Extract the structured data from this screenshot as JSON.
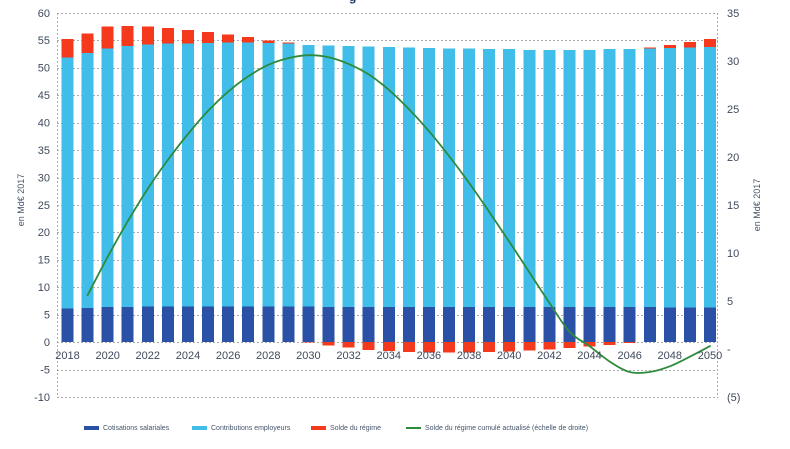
{
  "title_fragment": "g",
  "chart_data": {
    "type": "bar",
    "subtype": "stacked-bars-with-line-overlay",
    "grid": true,
    "legend_position": "bottom",
    "x": [
      2018,
      2019,
      2020,
      2021,
      2022,
      2023,
      2024,
      2025,
      2026,
      2027,
      2028,
      2029,
      2030,
      2031,
      2032,
      2033,
      2034,
      2035,
      2036,
      2037,
      2038,
      2039,
      2040,
      2041,
      2042,
      2043,
      2044,
      2045,
      2046,
      2047,
      2048,
      2049,
      2050
    ],
    "x_tick_labels": [
      "2018",
      "2020",
      "2022",
      "2024",
      "2026",
      "2028",
      "2030",
      "2032",
      "2034",
      "2036",
      "2038",
      "2040",
      "2042",
      "2044",
      "2046",
      "2048",
      "2050"
    ],
    "left_axis": {
      "title": "en Md€ 2017",
      "min": -10,
      "max": 60,
      "step": 5,
      "tick_labels": [
        "60",
        "55",
        "50",
        "45",
        "40",
        "35",
        "30",
        "25",
        "20",
        "15",
        "10",
        "5",
        "0",
        "-5",
        "-10"
      ],
      "tick_values": [
        60,
        55,
        50,
        45,
        40,
        35,
        30,
        25,
        20,
        15,
        10,
        5,
        0,
        -5,
        -10
      ]
    },
    "right_axis": {
      "title": "en Md€ 2017",
      "min": -5,
      "max": 35,
      "tick_labels": [
        "35",
        "30",
        "25",
        "20",
        "15",
        "10",
        "5",
        "-",
        "(5)"
      ],
      "tick_values": [
        35,
        30,
        25,
        20,
        15,
        10,
        5,
        0,
        -5
      ]
    },
    "series": [
      {
        "name": "Cotisations salariales",
        "kind": "bar",
        "axis": "left",
        "color": "#2A51A5",
        "values": [
          6.1,
          6.2,
          6.4,
          6.4,
          6.5,
          6.5,
          6.5,
          6.5,
          6.5,
          6.5,
          6.5,
          6.5,
          6.5,
          6.4,
          6.4,
          6.4,
          6.4,
          6.4,
          6.4,
          6.4,
          6.4,
          6.4,
          6.4,
          6.4,
          6.4,
          6.4,
          6.4,
          6.4,
          6.4,
          6.4,
          6.3,
          6.3,
          6.3
        ]
      },
      {
        "name": "Contributions employeurs",
        "kind": "bar",
        "axis": "left",
        "color": "#41BDE9",
        "values": [
          45.8,
          46.5,
          47.1,
          47.6,
          47.8,
          47.9,
          47.9,
          48.0,
          48.1,
          48.1,
          48.0,
          47.9,
          47.7,
          47.7,
          47.6,
          47.5,
          47.4,
          47.3,
          47.2,
          47.1,
          47.1,
          47.0,
          47.0,
          46.9,
          46.9,
          46.9,
          46.9,
          47.0,
          47.0,
          47.1,
          47.3,
          47.4,
          47.5
        ]
      },
      {
        "name": "Solde du régime",
        "kind": "bar",
        "axis": "left",
        "color": "#F4391D",
        "values": [
          3.4,
          3.6,
          4.0,
          3.6,
          3.2,
          2.9,
          2.5,
          2.0,
          1.5,
          1.0,
          0.5,
          0.2,
          -0.1,
          -0.6,
          -1.0,
          -1.4,
          -1.6,
          -1.8,
          -1.9,
          -1.9,
          -1.9,
          -1.8,
          -1.7,
          -1.5,
          -1.3,
          -1.1,
          -0.8,
          -0.5,
          -0.2,
          0.2,
          0.6,
          1.0,
          1.5
        ]
      },
      {
        "name": "Solde du régime cumulé actualisé (échelle de droite)",
        "kind": "line",
        "axis": "right",
        "color": "#2E8B3C",
        "smooth": true,
        "values": [
          null,
          5.6,
          9.6,
          13.3,
          16.7,
          19.7,
          22.4,
          24.8,
          26.8,
          28.4,
          29.6,
          30.3,
          30.6,
          30.4,
          29.7,
          28.6,
          27.0,
          25.0,
          22.7,
          20.1,
          17.3,
          14.3,
          11.2,
          8.0,
          4.8,
          1.8,
          0.3,
          -1.3,
          -2.4,
          -2.4,
          -1.8,
          -0.8,
          0.3
        ]
      }
    ]
  }
}
